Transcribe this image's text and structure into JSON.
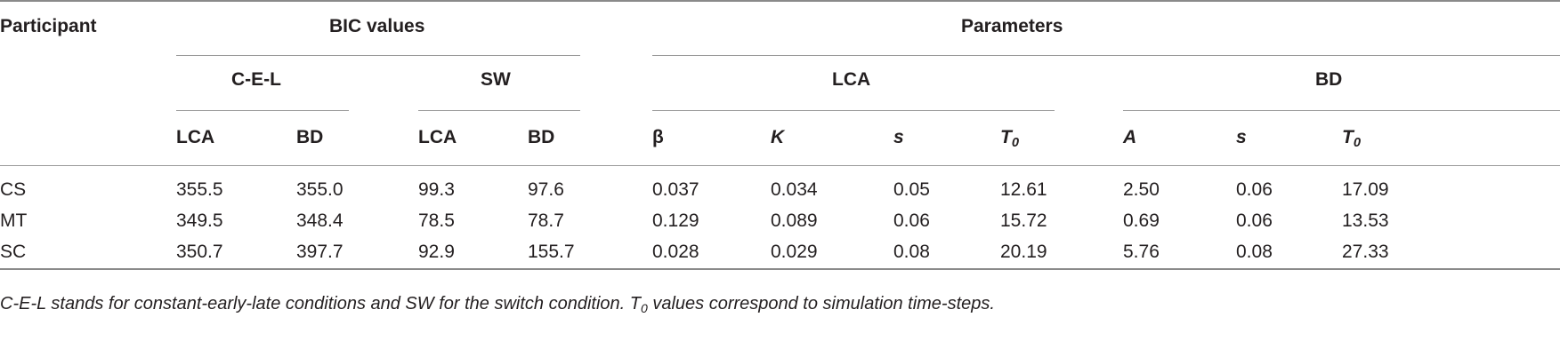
{
  "headers": {
    "participant": "Participant",
    "bic_values": "BIC values",
    "parameters": "Parameters",
    "cel": "C-E-L",
    "sw": "SW",
    "lca_group": "LCA",
    "bd_group": "BD",
    "cel_lca": "LCA",
    "cel_bd": "BD",
    "sw_lca": "LCA",
    "sw_bd": "BD",
    "beta": "β",
    "k": "K",
    "s1": "s",
    "t0_1": "T",
    "t0_1_sub": "0",
    "a": "A",
    "s2": "s",
    "t0_2": "T",
    "t0_2_sub": "0"
  },
  "rows": [
    {
      "participant": "CS",
      "cel_lca": "355.5",
      "cel_bd": "355.0",
      "sw_lca": "99.3",
      "sw_bd": "97.6",
      "beta": "0.037",
      "k": "0.034",
      "s_lca": "0.05",
      "t0_lca": "12.61",
      "a": "2.50",
      "s_bd": "0.06",
      "t0_bd": "17.09"
    },
    {
      "participant": "MT",
      "cel_lca": "349.5",
      "cel_bd": "348.4",
      "sw_lca": "78.5",
      "sw_bd": "78.7",
      "beta": "0.129",
      "k": "0.089",
      "s_lca": "0.06",
      "t0_lca": "15.72",
      "a": "0.69",
      "s_bd": "0.06",
      "t0_bd": "13.53"
    },
    {
      "participant": "SC",
      "cel_lca": "350.7",
      "cel_bd": "397.7",
      "sw_lca": "92.9",
      "sw_bd": "155.7",
      "beta": "0.028",
      "k": "0.029",
      "s_lca": "0.08",
      "t0_lca": "20.19",
      "a": "5.76",
      "s_bd": "0.08",
      "t0_bd": "27.33"
    }
  ],
  "footnote": {
    "part1": "C-E-L stands for constant-early-late conditions and SW for the switch condition. ",
    "t": "T",
    "sub": "0",
    "part2": " values correspond to simulation time-steps."
  }
}
